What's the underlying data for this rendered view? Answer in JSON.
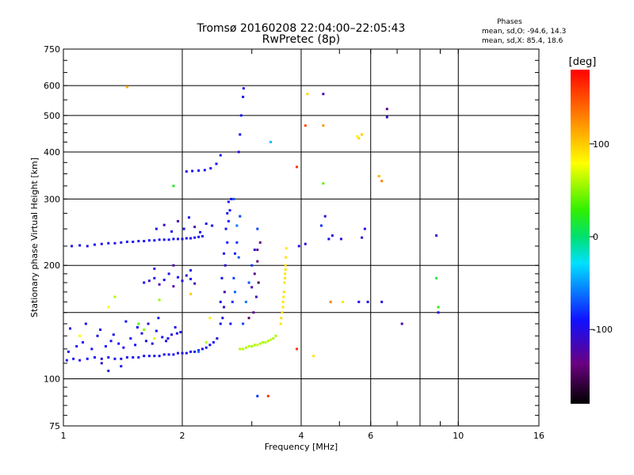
{
  "chart_data": {
    "type": "scatter",
    "title": "Tromsø 20160208 22:04:00–22:05:43",
    "subtitle": "RwPretec (8p)",
    "xlabel": "Frequency [MHz]",
    "ylabel": "Stationary phase Virtual Height [km]",
    "x_scale": "log",
    "y_scale": "log",
    "xlim": [
      1,
      16
    ],
    "ylim": [
      75,
      750
    ],
    "x_ticks": [
      1,
      2,
      4,
      6,
      10,
      16
    ],
    "x_ticks_unlabeled": [
      8
    ],
    "y_ticks": [
      75,
      100,
      200,
      300,
      400,
      500,
      600,
      750
    ],
    "y_ticks_unlabeled": [
      150
    ],
    "grid": true,
    "stats": {
      "heading": "Phases",
      "line_o": "mean, sd,O: -94.6, 14.3",
      "line_x": "mean, sd,X:  85.4, 18.6"
    },
    "colorbar": {
      "label": "[deg]",
      "range": [
        -180,
        180
      ],
      "ticks": [
        "100",
        "0",
        "-100"
      ],
      "tick_values": [
        100,
        0,
        -100
      ]
    },
    "series": [
      {
        "points": [
          [
            1.02,
            112,
            -95
          ],
          [
            1.06,
            113,
            -92
          ],
          [
            1.1,
            112,
            -98
          ],
          [
            1.15,
            113,
            -90
          ],
          [
            1.2,
            114,
            -95
          ],
          [
            1.25,
            113,
            -100
          ],
          [
            1.3,
            114,
            -92
          ],
          [
            1.35,
            113,
            -96
          ],
          [
            1.4,
            113,
            -94
          ],
          [
            1.45,
            114,
            -99
          ],
          [
            1.5,
            114,
            -93
          ],
          [
            1.55,
            114,
            -97
          ],
          [
            1.6,
            115,
            -95
          ],
          [
            1.65,
            115,
            -92
          ],
          [
            1.7,
            115,
            -98
          ],
          [
            1.75,
            115,
            -94
          ],
          [
            1.8,
            116,
            -96
          ],
          [
            1.85,
            116,
            -91
          ],
          [
            1.9,
            116,
            -99
          ],
          [
            1.95,
            117,
            -94
          ],
          [
            2.0,
            117,
            -96
          ],
          [
            2.05,
            117,
            -93
          ],
          [
            2.1,
            118,
            -97
          ],
          [
            2.15,
            118,
            -95
          ],
          [
            2.2,
            119,
            -92
          ],
          [
            2.25,
            120,
            -98
          ],
          [
            2.3,
            121,
            -94
          ],
          [
            2.35,
            123,
            -96
          ],
          [
            2.4,
            125,
            -91
          ],
          [
            2.45,
            128,
            -99
          ],
          [
            1.03,
            118,
            -95
          ],
          [
            1.08,
            122,
            -97
          ],
          [
            1.12,
            125,
            -92
          ],
          [
            1.18,
            120,
            -95
          ],
          [
            1.22,
            130,
            -99
          ],
          [
            1.28,
            122,
            -92
          ],
          [
            1.32,
            126,
            -96
          ],
          [
            1.38,
            124,
            -93
          ],
          [
            1.42,
            121,
            -98
          ],
          [
            1.48,
            128,
            -95
          ],
          [
            1.52,
            123,
            -91
          ],
          [
            1.58,
            132,
            -97
          ],
          [
            1.62,
            126,
            -94
          ],
          [
            1.68,
            124,
            -99
          ],
          [
            1.72,
            134,
            -92
          ],
          [
            1.78,
            129,
            -96
          ],
          [
            1.82,
            126,
            -93
          ],
          [
            1.88,
            131,
            -98
          ],
          [
            1.92,
            137,
            -95
          ],
          [
            1.98,
            133,
            -92
          ],
          [
            1.04,
            136,
            -95
          ],
          [
            1.14,
            140,
            -93
          ],
          [
            1.24,
            135,
            -97
          ],
          [
            1.34,
            131,
            -94
          ],
          [
            1.44,
            142,
            -96
          ],
          [
            1.54,
            137,
            -92
          ],
          [
            1.64,
            140,
            -98
          ],
          [
            1.74,
            145,
            -94
          ],
          [
            1.84,
            128,
            -95
          ],
          [
            1.94,
            132,
            -97
          ],
          [
            1.05,
            225,
            -95
          ],
          [
            1.1,
            226,
            -93
          ],
          [
            1.15,
            225,
            -97
          ],
          [
            1.2,
            227,
            -94
          ],
          [
            1.25,
            228,
            -96
          ],
          [
            1.3,
            229,
            -92
          ],
          [
            1.35,
            229,
            -98
          ],
          [
            1.4,
            230,
            -94
          ],
          [
            1.45,
            231,
            -95
          ],
          [
            1.5,
            231,
            -97
          ],
          [
            1.55,
            232,
            -93
          ],
          [
            1.6,
            232,
            -96
          ],
          [
            1.65,
            233,
            -94
          ],
          [
            1.7,
            233,
            -98
          ],
          [
            1.75,
            234,
            -92
          ],
          [
            1.8,
            234,
            -95
          ],
          [
            1.85,
            234,
            -97
          ],
          [
            1.9,
            235,
            -93
          ],
          [
            1.95,
            235,
            -96
          ],
          [
            2.0,
            235,
            -94
          ],
          [
            2.05,
            236,
            -98
          ],
          [
            2.1,
            236,
            -95
          ],
          [
            2.15,
            237,
            -92
          ],
          [
            2.2,
            238,
            -96
          ],
          [
            2.25,
            239,
            -94
          ],
          [
            1.72,
            250,
            -95
          ],
          [
            1.8,
            256,
            -110
          ],
          [
            1.88,
            246,
            -97
          ],
          [
            1.95,
            262,
            -120
          ],
          [
            2.02,
            250,
            -94
          ],
          [
            2.08,
            268,
            -96
          ],
          [
            2.15,
            253,
            -125
          ],
          [
            2.22,
            245,
            -93
          ],
          [
            2.3,
            258,
            -97
          ],
          [
            2.38,
            255,
            -95
          ],
          [
            1.6,
            180,
            -95
          ],
          [
            1.65,
            182,
            -110
          ],
          [
            1.7,
            185,
            -97
          ],
          [
            1.75,
            178,
            -120
          ],
          [
            1.8,
            183,
            -94
          ],
          [
            1.85,
            190,
            -96
          ],
          [
            1.9,
            176,
            -125
          ],
          [
            1.95,
            186,
            -93
          ],
          [
            2.0,
            182,
            -97
          ],
          [
            2.05,
            188,
            -110
          ],
          [
            2.1,
            184,
            -95
          ],
          [
            2.15,
            179,
            -118
          ],
          [
            1.7,
            196,
            -95
          ],
          [
            1.9,
            200,
            -120
          ],
          [
            2.1,
            194,
            -97
          ],
          [
            2.05,
            355,
            -95
          ],
          [
            2.12,
            356,
            -93
          ],
          [
            2.2,
            357,
            -97
          ],
          [
            2.28,
            358,
            -94
          ],
          [
            2.36,
            362,
            -96
          ],
          [
            2.44,
            372,
            -92
          ],
          [
            2.5,
            392,
            -95
          ],
          [
            2.5,
            140,
            -95
          ],
          [
            2.5,
            160,
            -100
          ],
          [
            2.52,
            185,
            -97
          ],
          [
            2.55,
            215,
            -93
          ],
          [
            2.58,
            250,
            -96
          ],
          [
            2.6,
            275,
            -94
          ],
          [
            2.62,
            295,
            -98
          ],
          [
            2.55,
            155,
            -110
          ],
          [
            2.53,
            145,
            -100
          ],
          [
            2.56,
            170,
            -120
          ],
          [
            2.6,
            230,
            -88
          ],
          [
            2.62,
            262,
            -85
          ],
          [
            2.64,
            280,
            -90
          ],
          [
            2.66,
            300,
            -95
          ],
          [
            2.57,
            200,
            -105
          ],
          [
            2.65,
            140,
            -90
          ],
          [
            2.68,
            160,
            -80
          ],
          [
            2.7,
            185,
            -75
          ],
          [
            2.72,
            215,
            -85
          ],
          [
            2.75,
            255,
            -60
          ],
          [
            2.7,
            300,
            -70
          ],
          [
            2.78,
            400,
            -95
          ],
          [
            2.8,
            445,
            -90
          ],
          [
            2.82,
            500,
            -95
          ],
          [
            2.85,
            560,
            -93
          ],
          [
            2.86,
            590,
            -94
          ],
          [
            2.75,
            230,
            -80
          ],
          [
            2.8,
            270,
            -75
          ],
          [
            2.72,
            170,
            -65
          ],
          [
            2.78,
            210,
            -70
          ],
          [
            2.85,
            140,
            -75
          ],
          [
            2.9,
            160,
            -60
          ],
          [
            2.95,
            180,
            -70
          ],
          [
            3.0,
            200,
            -80
          ],
          [
            3.05,
            220,
            -110
          ],
          [
            3.1,
            250,
            -75
          ],
          [
            3.0,
            175,
            -120
          ],
          [
            3.05,
            190,
            -130
          ],
          [
            3.1,
            205,
            -140
          ],
          [
            3.1,
            220,
            -125
          ],
          [
            3.15,
            230,
            -135
          ],
          [
            3.08,
            165,
            -115
          ],
          [
            3.03,
            150,
            -130
          ],
          [
            2.95,
            145,
            -140
          ],
          [
            3.12,
            180,
            -150
          ],
          [
            2.9,
            121,
            60
          ],
          [
            2.95,
            122,
            62
          ],
          [
            3.0,
            122,
            58
          ],
          [
            3.05,
            123,
            60
          ],
          [
            3.1,
            123,
            65
          ],
          [
            3.15,
            124,
            60
          ],
          [
            3.2,
            125,
            58
          ],
          [
            3.25,
            125,
            62
          ],
          [
            3.3,
            126,
            60
          ],
          [
            3.35,
            127,
            63
          ],
          [
            3.4,
            128,
            60
          ],
          [
            3.45,
            130,
            58
          ],
          [
            2.85,
            120,
            62
          ],
          [
            2.8,
            120,
            60
          ],
          [
            3.55,
            140,
            90
          ],
          [
            3.58,
            150,
            92
          ],
          [
            3.6,
            160,
            88
          ],
          [
            3.62,
            170,
            91
          ],
          [
            3.63,
            180,
            90
          ],
          [
            3.64,
            190,
            87
          ],
          [
            3.65,
            200,
            92
          ],
          [
            3.66,
            210,
            90
          ],
          [
            3.67,
            222,
            88
          ],
          [
            3.6,
            155,
            90
          ],
          [
            3.56,
            145,
            94
          ],
          [
            3.61,
            165,
            89
          ],
          [
            3.64,
            185,
            91
          ],
          [
            3.65,
            195,
            90
          ],
          [
            1.45,
            595,
            110
          ],
          [
            1.9,
            325,
            20
          ],
          [
            3.35,
            425,
            -40
          ],
          [
            3.9,
            365,
            160
          ],
          [
            4.15,
            570,
            95
          ],
          [
            4.55,
            570,
            -120
          ],
          [
            4.1,
            470,
            150
          ],
          [
            4.55,
            470,
            120
          ],
          [
            5.6,
            435,
            95
          ],
          [
            5.7,
            445,
            100
          ],
          [
            5.55,
            440,
            85
          ],
          [
            6.6,
            520,
            -130
          ],
          [
            6.6,
            495,
            -110
          ],
          [
            6.3,
            345,
            110
          ],
          [
            6.4,
            335,
            130
          ],
          [
            4.55,
            330,
            40
          ],
          [
            3.95,
            225,
            -100
          ],
          [
            4.1,
            228,
            -110
          ],
          [
            4.6,
            270,
            -100
          ],
          [
            4.5,
            255,
            -80
          ],
          [
            4.7,
            235,
            -95
          ],
          [
            4.8,
            240,
            -105
          ],
          [
            5.05,
            235,
            -100
          ],
          [
            5.7,
            237,
            -110
          ],
          [
            5.8,
            250,
            -100
          ],
          [
            4.75,
            160,
            130
          ],
          [
            5.1,
            160,
            90
          ],
          [
            5.6,
            160,
            -100
          ],
          [
            5.9,
            160,
            -95
          ],
          [
            6.4,
            160,
            -95
          ],
          [
            7.2,
            140,
            -120
          ],
          [
            8.8,
            240,
            -110
          ],
          [
            8.8,
            185,
            15
          ],
          [
            8.9,
            155,
            25
          ],
          [
            8.9,
            150,
            -100
          ],
          [
            4.3,
            115,
            90
          ],
          [
            3.9,
            120,
            160
          ],
          [
            2.3,
            125,
            60
          ],
          [
            2.2,
            118,
            -60
          ],
          [
            3.1,
            90,
            -80
          ],
          [
            3.3,
            90,
            160
          ],
          [
            1.25,
            110,
            -110
          ],
          [
            1.3,
            105,
            -100
          ],
          [
            1.4,
            108,
            -95
          ],
          [
            1.6,
            135,
            50
          ],
          [
            1.55,
            140,
            40
          ],
          [
            1.7,
            128,
            70
          ],
          [
            1.35,
            165,
            60
          ],
          [
            1.3,
            155,
            80
          ],
          [
            2.35,
            145,
            85
          ],
          [
            2.1,
            168,
            100
          ],
          [
            1.75,
            162,
            55
          ],
          [
            1.1,
            130,
            80
          ]
        ]
      }
    ]
  }
}
